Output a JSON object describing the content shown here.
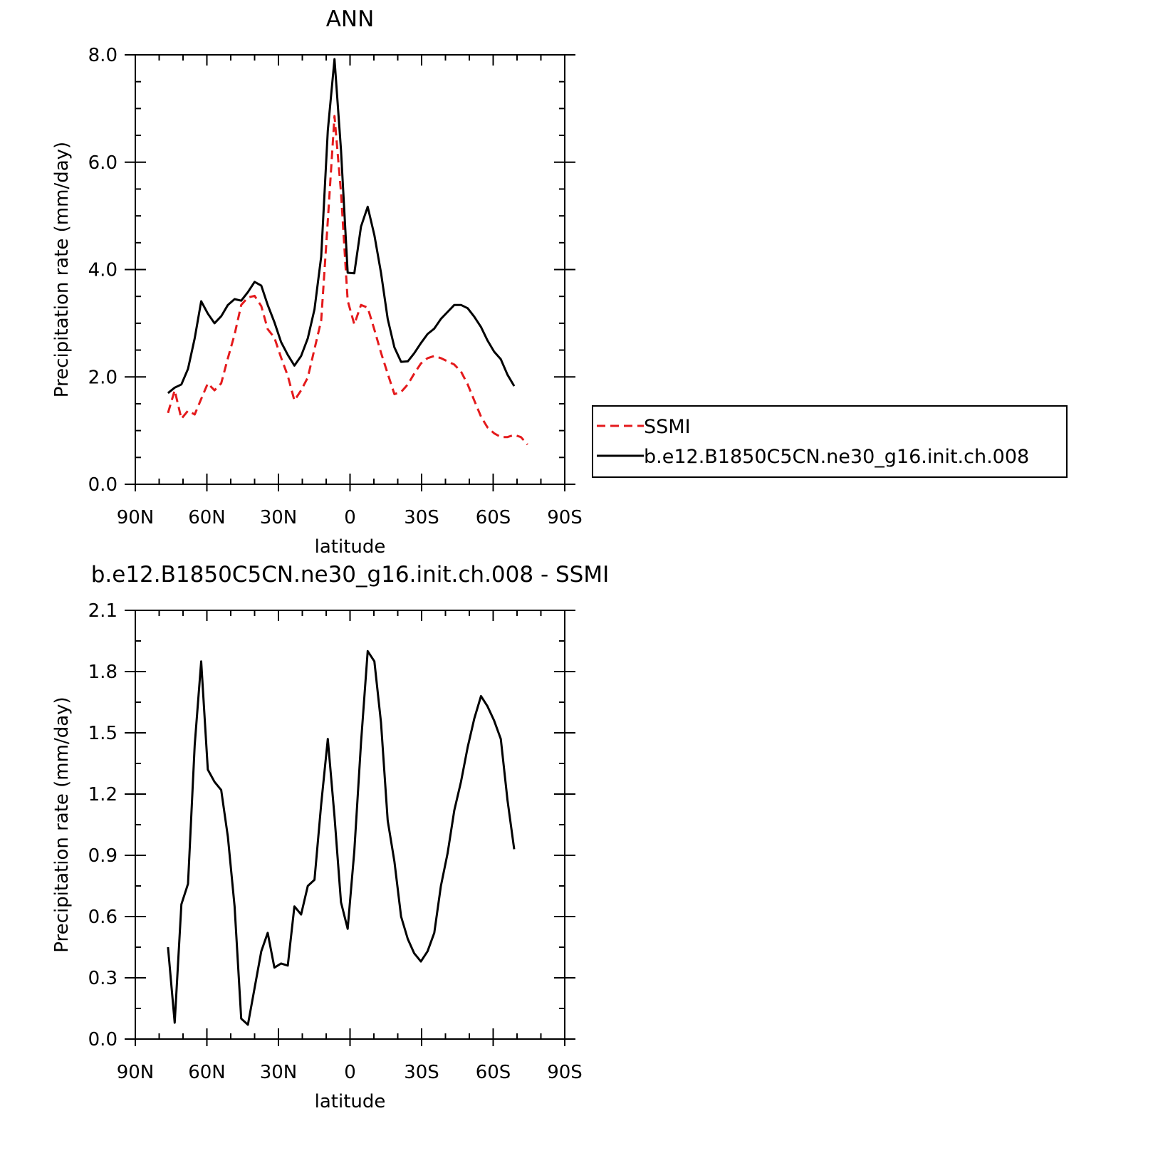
{
  "chart_data": [
    {
      "type": "line",
      "title": "ANN",
      "xlabel": "latitude",
      "ylabel": "Precipitation rate (mm/day)",
      "x": [
        76.3,
        73.5,
        70.7,
        67.9,
        65.1,
        62.4,
        59.6,
        56.8,
        54.0,
        51.2,
        48.4,
        45.6,
        42.8,
        40.0,
        37.2,
        34.5,
        31.7,
        28.9,
        26.1,
        23.3,
        20.5,
        17.7,
        14.9,
        12.1,
        9.3,
        6.5,
        3.8,
        1.0,
        -1.8,
        -4.6,
        -7.4,
        -10.2,
        -13.0,
        -15.8,
        -18.6,
        -21.4,
        -24.2,
        -26.9,
        -29.7,
        -32.5,
        -35.3,
        -38.1,
        -40.9,
        -43.7,
        -46.5,
        -49.3,
        -52.1,
        -54.9,
        -57.6,
        -60.4,
        -63.2,
        -66.0,
        -68.8,
        -71.6,
        -74.4
      ],
      "series": [
        {
          "name": "SSMI",
          "color": "#e41a1c",
          "linestyle": "dashed",
          "values": [
            1.33,
            1.75,
            1.22,
            1.37,
            1.3,
            1.59,
            1.88,
            1.75,
            1.88,
            2.35,
            2.79,
            3.34,
            3.48,
            3.51,
            3.32,
            2.89,
            2.73,
            2.36,
            2.02,
            1.56,
            1.75,
            1.99,
            2.52,
            3.05,
            4.91,
            6.86,
            5.44,
            3.42,
            2.98,
            3.34,
            3.29,
            2.88,
            2.45,
            2.06,
            1.68,
            1.72,
            1.86,
            2.06,
            2.25,
            2.35,
            2.39,
            2.35,
            2.29,
            2.23,
            2.1,
            1.86,
            1.56,
            1.26,
            1.06,
            0.95,
            0.88,
            0.88,
            0.92,
            0.88,
            0.74
          ]
        },
        {
          "name": "b.e12.B1850C5CN.ne30_g16.init.ch.008",
          "color": "#000000",
          "linestyle": "solid",
          "values": [
            1.7,
            1.8,
            1.86,
            2.15,
            2.72,
            3.41,
            3.18,
            3.0,
            3.13,
            3.34,
            3.45,
            3.42,
            3.58,
            3.77,
            3.7,
            3.34,
            3.02,
            2.65,
            2.41,
            2.21,
            2.39,
            2.72,
            3.26,
            4.24,
            6.59,
            7.92,
            6.23,
            3.94,
            3.93,
            4.8,
            5.17,
            4.64,
            3.94,
            3.08,
            2.55,
            2.28,
            2.29,
            2.44,
            2.63,
            2.8,
            2.9,
            3.08,
            3.21,
            3.34,
            3.34,
            3.28,
            3.12,
            2.93,
            2.68,
            2.47,
            2.33,
            2.04,
            1.83,
            null,
            null
          ]
        }
      ],
      "xlim": [
        90,
        -90
      ],
      "xticks": [
        {
          "value": 90,
          "label": "90N"
        },
        {
          "value": 60,
          "label": "60N"
        },
        {
          "value": 30,
          "label": "30N"
        },
        0,
        {
          "value": -30,
          "label": "30S"
        },
        {
          "value": -60,
          "label": "60S"
        },
        {
          "value": -90,
          "label": "90S"
        }
      ],
      "ylim": [
        0,
        8
      ],
      "yticks": [
        {
          "value": 0,
          "label": "0.0"
        },
        {
          "value": 2,
          "label": "2.0"
        },
        {
          "value": 4,
          "label": "4.0"
        },
        {
          "value": 6,
          "label": "6.0"
        },
        {
          "value": 8,
          "label": "8.0"
        }
      ],
      "legend": "right"
    },
    {
      "type": "line",
      "title": "b.e12.B1850C5CN.ne30_g16.init.ch.008 - SSMI",
      "xlabel": "latitude",
      "ylabel": "Precipitation rate (mm/day)",
      "x": [
        76.3,
        73.5,
        70.7,
        67.9,
        65.1,
        62.4,
        59.6,
        56.8,
        54.0,
        51.2,
        48.4,
        45.6,
        42.8,
        40.0,
        37.2,
        34.5,
        31.7,
        28.9,
        26.1,
        23.3,
        20.5,
        17.7,
        14.9,
        12.1,
        9.3,
        6.5,
        3.8,
        1.0,
        -1.8,
        -4.6,
        -7.4,
        -10.2,
        -13.0,
        -15.8,
        -18.6,
        -21.4,
        -24.2,
        -26.9,
        -29.7,
        -32.5,
        -35.3,
        -38.1,
        -40.9,
        -43.7,
        -46.5,
        -49.3,
        -52.1,
        -54.9,
        -57.6,
        -60.4,
        -63.2,
        -66.0,
        -68.8
      ],
      "color": "#000000",
      "values": [
        0.45,
        0.08,
        0.66,
        0.76,
        1.44,
        1.85,
        1.32,
        1.26,
        1.22,
        0.99,
        0.65,
        0.1,
        0.07,
        0.25,
        0.43,
        0.52,
        0.35,
        0.37,
        0.36,
        0.65,
        0.61,
        0.75,
        0.78,
        1.15,
        1.47,
        1.09,
        0.67,
        0.54,
        0.92,
        1.45,
        1.9,
        1.85,
        1.55,
        1.07,
        0.87,
        0.6,
        0.49,
        0.42,
        0.38,
        0.43,
        0.52,
        0.75,
        0.91,
        1.12,
        1.26,
        1.43,
        1.57,
        1.68,
        1.63,
        1.56,
        1.47,
        1.17,
        0.93
      ],
      "xlim": [
        90,
        -90
      ],
      "xticks": [
        {
          "value": 90,
          "label": "90N"
        },
        {
          "value": 60,
          "label": "60N"
        },
        {
          "value": 30,
          "label": "30N"
        },
        0,
        {
          "value": -30,
          "label": "30S"
        },
        {
          "value": -60,
          "label": "60S"
        },
        {
          "value": -90,
          "label": "90S"
        }
      ],
      "ylim": [
        0,
        2.1
      ],
      "yticks": [
        {
          "value": 0,
          "label": "0.0"
        },
        {
          "value": 0.3,
          "label": "0.3"
        },
        {
          "value": 0.6,
          "label": "0.6"
        },
        {
          "value": 0.9,
          "label": "0.9"
        },
        {
          "value": 1.2,
          "label": "1.2"
        },
        {
          "value": 1.5,
          "label": "1.5"
        },
        {
          "value": 1.8,
          "label": "1.8"
        },
        {
          "value": 2.1,
          "label": "2.1"
        }
      ]
    }
  ]
}
